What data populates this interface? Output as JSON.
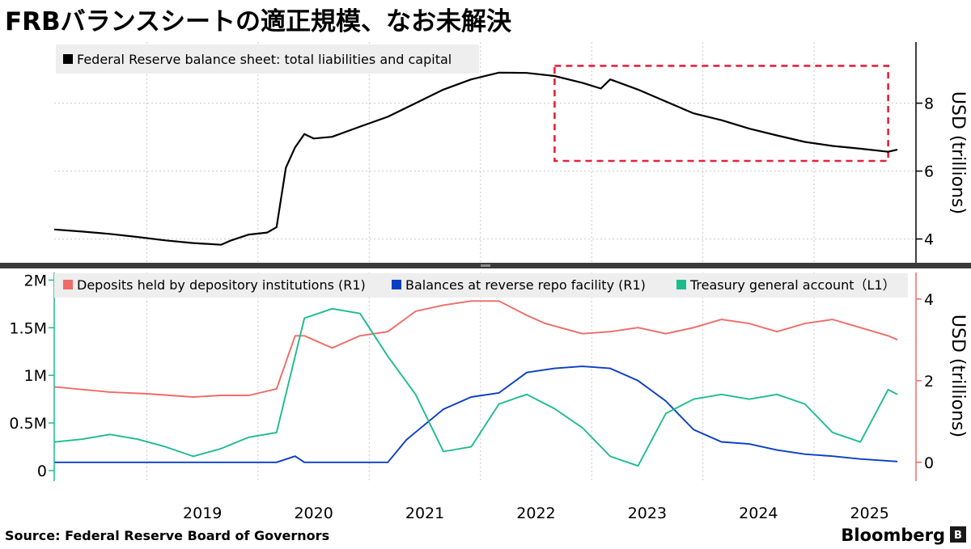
{
  "title": "FRBバランスシートの適正規模、なお未解決",
  "source": "Source: Federal Reserve Board of Governors",
  "brand": "Bloomberg",
  "colors": {
    "balance": "#000000",
    "deposits": "#ef6b66",
    "reverse_repo": "#0a3ec2",
    "tga": "#1dbc8f",
    "highlight": "#e8203c",
    "grid": "#c9c9c9"
  },
  "chart_data": [
    {
      "type": "line",
      "name": "top-panel",
      "ylabel": "USD (trillions)",
      "ylim": [
        3.3,
        9.8
      ],
      "yticks": [
        "4",
        "6",
        "8"
      ],
      "legend_position": "top-left",
      "highlight_box": {
        "x_range": [
          "2022-09",
          "2025-09"
        ],
        "y_range": [
          6.3,
          9.1
        ]
      },
      "series": [
        {
          "name": "Federal Reserve balance sheet: total liabilities and capital",
          "color": "#000000",
          "points": [
            [
              "2018-03",
              4.28
            ],
            [
              "2018-06",
              4.22
            ],
            [
              "2018-09",
              4.15
            ],
            [
              "2018-12",
              4.06
            ],
            [
              "2019-03",
              3.96
            ],
            [
              "2019-06",
              3.88
            ],
            [
              "2019-09",
              3.83
            ],
            [
              "2019-10",
              3.95
            ],
            [
              "2019-12",
              4.13
            ],
            [
              "2020-02",
              4.19
            ],
            [
              "2020-03",
              4.35
            ],
            [
              "2020-04",
              6.1
            ],
            [
              "2020-05",
              6.7
            ],
            [
              "2020-06",
              7.09
            ],
            [
              "2020-07",
              6.96
            ],
            [
              "2020-09",
              7.01
            ],
            [
              "2020-12",
              7.31
            ],
            [
              "2021-03",
              7.6
            ],
            [
              "2021-06",
              8.0
            ],
            [
              "2021-09",
              8.4
            ],
            [
              "2021-12",
              8.7
            ],
            [
              "2022-03",
              8.9
            ],
            [
              "2022-06",
              8.89
            ],
            [
              "2022-09",
              8.8
            ],
            [
              "2022-12",
              8.6
            ],
            [
              "2023-02",
              8.43
            ],
            [
              "2023-03",
              8.7
            ],
            [
              "2023-06",
              8.4
            ],
            [
              "2023-09",
              8.05
            ],
            [
              "2023-12",
              7.7
            ],
            [
              "2024-03",
              7.5
            ],
            [
              "2024-06",
              7.25
            ],
            [
              "2024-09",
              7.05
            ],
            [
              "2024-12",
              6.86
            ],
            [
              "2025-03",
              6.74
            ],
            [
              "2025-06",
              6.66
            ],
            [
              "2025-09",
              6.57
            ],
            [
              "2025-10",
              6.63
            ]
          ]
        }
      ]
    },
    {
      "type": "line",
      "name": "bottom-panel",
      "ylabel": "USD (trillions)",
      "left_axis": {
        "ticks": [
          "0",
          "0.5M",
          "1M",
          "1.5M",
          "2M"
        ],
        "ylim": [
          -110000,
          2080000
        ]
      },
      "right_axis": {
        "ticks": [
          "0",
          "2",
          "4"
        ],
        "ylim": [
          -0.46,
          4.65
        ]
      },
      "x_ticks": [
        "2019",
        "2020",
        "2021",
        "2022",
        "2023",
        "2024",
        "2025"
      ],
      "xlim": [
        "2018-03",
        "2025-12"
      ],
      "legend_position": "top",
      "series": [
        {
          "name": "Deposits held by depository institutions (R1)",
          "axis": "right",
          "color": "#ef6b66",
          "points": [
            [
              "2018-03",
              1.85
            ],
            [
              "2018-09",
              1.72
            ],
            [
              "2019-01",
              1.68
            ],
            [
              "2019-06",
              1.6
            ],
            [
              "2019-09",
              1.64
            ],
            [
              "2019-12",
              1.64
            ],
            [
              "2020-03",
              1.8
            ],
            [
              "2020-05",
              3.1
            ],
            [
              "2020-06",
              3.1
            ],
            [
              "2020-09",
              2.8
            ],
            [
              "2020-12",
              3.1
            ],
            [
              "2021-03",
              3.2
            ],
            [
              "2021-06",
              3.7
            ],
            [
              "2021-09",
              3.85
            ],
            [
              "2021-12",
              3.95
            ],
            [
              "2022-03",
              3.95
            ],
            [
              "2022-06",
              3.6
            ],
            [
              "2022-08",
              3.4
            ],
            [
              "2022-12",
              3.15
            ],
            [
              "2023-03",
              3.2
            ],
            [
              "2023-06",
              3.3
            ],
            [
              "2023-09",
              3.15
            ],
            [
              "2023-12",
              3.3
            ],
            [
              "2024-03",
              3.5
            ],
            [
              "2024-06",
              3.4
            ],
            [
              "2024-09",
              3.2
            ],
            [
              "2024-12",
              3.4
            ],
            [
              "2025-03",
              3.5
            ],
            [
              "2025-06",
              3.3
            ],
            [
              "2025-09",
              3.1
            ],
            [
              "2025-10",
              3.0
            ]
          ]
        },
        {
          "name": "Balances at reverse repo facility (R1)",
          "axis": "right",
          "color": "#0a3ec2",
          "points": [
            [
              "2018-03",
              0.0
            ],
            [
              "2020-03",
              0.0
            ],
            [
              "2020-05",
              0.15
            ],
            [
              "2020-06",
              0.0
            ],
            [
              "2021-03",
              0.0
            ],
            [
              "2021-05",
              0.55
            ],
            [
              "2021-09",
              1.3
            ],
            [
              "2021-12",
              1.6
            ],
            [
              "2022-03",
              1.7
            ],
            [
              "2022-06",
              2.2
            ],
            [
              "2022-09",
              2.3
            ],
            [
              "2022-12",
              2.35
            ],
            [
              "2023-03",
              2.3
            ],
            [
              "2023-06",
              2.0
            ],
            [
              "2023-09",
              1.5
            ],
            [
              "2023-12",
              0.8
            ],
            [
              "2024-03",
              0.5
            ],
            [
              "2024-06",
              0.45
            ],
            [
              "2024-09",
              0.3
            ],
            [
              "2024-12",
              0.2
            ],
            [
              "2025-03",
              0.15
            ],
            [
              "2025-06",
              0.08
            ],
            [
              "2025-10",
              0.02
            ]
          ]
        },
        {
          "name": "Treasury general account（L1）",
          "axis": "left",
          "color": "#1dbc8f",
          "points": [
            [
              "2018-03",
              300000
            ],
            [
              "2018-06",
              330000
            ],
            [
              "2018-09",
              380000
            ],
            [
              "2018-12",
              330000
            ],
            [
              "2019-03",
              250000
            ],
            [
              "2019-06",
              150000
            ],
            [
              "2019-09",
              230000
            ],
            [
              "2019-12",
              350000
            ],
            [
              "2020-03",
              400000
            ],
            [
              "2020-06",
              1600000
            ],
            [
              "2020-09",
              1700000
            ],
            [
              "2020-12",
              1650000
            ],
            [
              "2021-03",
              1200000
            ],
            [
              "2021-06",
              800000
            ],
            [
              "2021-09",
              200000
            ],
            [
              "2021-12",
              250000
            ],
            [
              "2022-03",
              700000
            ],
            [
              "2022-06",
              800000
            ],
            [
              "2022-09",
              650000
            ],
            [
              "2022-12",
              450000
            ],
            [
              "2023-03",
              150000
            ],
            [
              "2023-06",
              50000
            ],
            [
              "2023-09",
              600000
            ],
            [
              "2023-12",
              750000
            ],
            [
              "2024-03",
              800000
            ],
            [
              "2024-06",
              750000
            ],
            [
              "2024-09",
              800000
            ],
            [
              "2024-12",
              700000
            ],
            [
              "2025-03",
              400000
            ],
            [
              "2025-06",
              300000
            ],
            [
              "2025-09",
              850000
            ],
            [
              "2025-10",
              800000
            ]
          ]
        }
      ]
    }
  ]
}
